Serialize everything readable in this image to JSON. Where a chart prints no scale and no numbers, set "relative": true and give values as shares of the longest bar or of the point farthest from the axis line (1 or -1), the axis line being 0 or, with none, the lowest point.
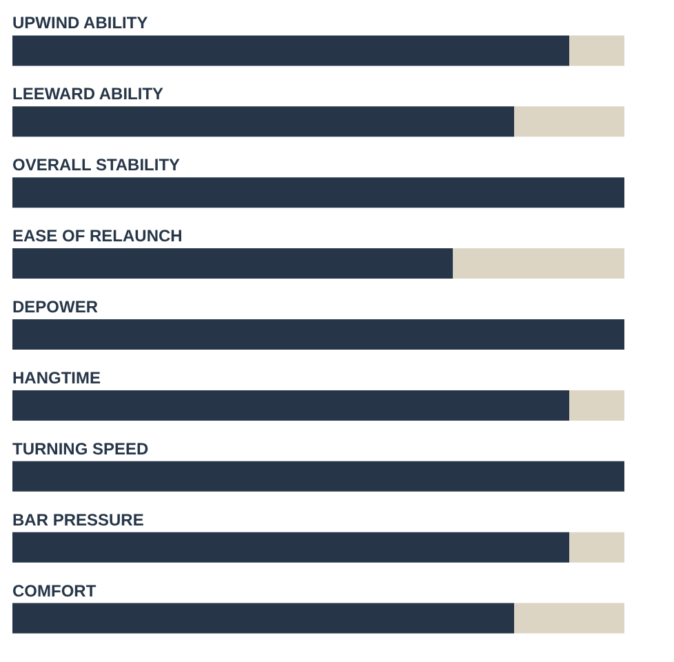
{
  "chart_data": {
    "type": "bar",
    "orientation": "horizontal",
    "stacked": true,
    "relative": true,
    "categories": [
      "UPWIND ABILITY",
      "LEEWARD ABILITY",
      "OVERALL STABILITY",
      "EASE OF RELAUNCH",
      "DEPOWER",
      "HANGTIME",
      "TURNING SPEED",
      "BAR PRESSURE",
      "COMFORT"
    ],
    "series": [
      {
        "color": "#263648",
        "values": [
          0.91,
          0.82,
          1,
          0.72,
          1,
          0.91,
          1,
          0.91,
          0.82
        ]
      },
      {
        "color": "#ddd5c4",
        "values": [
          0.09,
          0.18,
          0,
          0.28,
          0,
          0.09,
          0,
          0.09,
          0.18
        ]
      }
    ]
  }
}
